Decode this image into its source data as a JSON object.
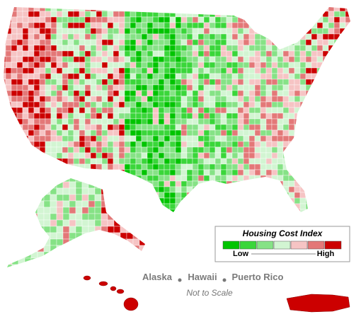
{
  "legend": {
    "title": "Housing Cost Index",
    "low": "Low",
    "high": "High",
    "colors": [
      "#00c400",
      "#3ad63a",
      "#86e286",
      "#d2f5d2",
      "#f6c4c4",
      "#e37878",
      "#cc0000"
    ]
  },
  "labels": {
    "alaska": "Alaska",
    "hawaii": "Hawaii",
    "puerto_rico": "Puerto Rico",
    "scale_note": "Not to Scale"
  }
}
